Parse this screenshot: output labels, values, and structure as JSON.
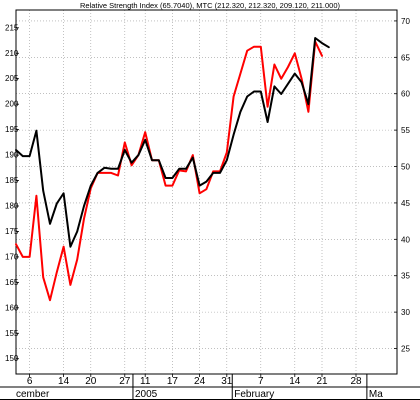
{
  "chart_data": {
    "type": "line",
    "title": "Relative Strength Index (65.7040), MTC (212.320, 212.320, 209.120, 211.000)",
    "left_axis": {
      "min": 147,
      "max": 218.5,
      "ticks": [
        150,
        155,
        160,
        165,
        170,
        175,
        180,
        185,
        190,
        195,
        200,
        205,
        210,
        215
      ]
    },
    "right_axis": {
      "min": 21.5,
      "max": 71.5,
      "ticks": [
        25,
        30,
        35,
        40,
        45,
        50,
        55,
        60,
        65,
        70
      ]
    },
    "x_ticks": [
      {
        "i": 2,
        "label": "6"
      },
      {
        "i": 7,
        "label": "14"
      },
      {
        "i": 11,
        "label": "20"
      },
      {
        "i": 16,
        "label": "27"
      },
      {
        "i": 19,
        "label": "11"
      },
      {
        "i": 23,
        "label": "17"
      },
      {
        "i": 27,
        "label": "24"
      },
      {
        "i": 31,
        "label": "31"
      },
      {
        "i": 36,
        "label": "7"
      },
      {
        "i": 41,
        "label": "14"
      },
      {
        "i": 45,
        "label": "21"
      },
      {
        "i": 50,
        "label": "28"
      }
    ],
    "month_labels": [
      {
        "i": -0.3,
        "label": "cember"
      },
      {
        "i": 17.2,
        "label": "2005"
      },
      {
        "i": 31.8,
        "label": "February"
      },
      {
        "i": 51.6,
        "label": "Ma"
      }
    ],
    "month_separators": [
      17.2,
      31.8,
      51.6
    ],
    "series": [
      {
        "color": "#000000",
        "axis": "left",
        "values": [
          191,
          189.8,
          189.8,
          194.8,
          183,
          176.5,
          180.5,
          182.5,
          172,
          175,
          180,
          184,
          186.5,
          187.5,
          187.3,
          187.3,
          191,
          188.5,
          190,
          193,
          189,
          189,
          185.5,
          185.5,
          187.3,
          187.3,
          189.5,
          184,
          184.8,
          186.5,
          186.5,
          189,
          194,
          198.5,
          201.5,
          202.5,
          202.5,
          196.5,
          203.5,
          202,
          204,
          206,
          204.3,
          200,
          213,
          212,
          211.2
        ]
      },
      {
        "color": "#ff0000",
        "axis": "left",
        "values": [
          172.5,
          170,
          170,
          182,
          166,
          161.5,
          167,
          172,
          164.5,
          169.5,
          177.5,
          183.5,
          186.5,
          186.5,
          186.5,
          186,
          192.5,
          188,
          190,
          194.5,
          189,
          189,
          184,
          184,
          187,
          186.8,
          190,
          182.5,
          183.3,
          186.8,
          186.8,
          190.5,
          201.5,
          206,
          210.5,
          211.3,
          211.3,
          199.5,
          207.8,
          205,
          207.3,
          210,
          205,
          198.5,
          212.3,
          209.5
        ]
      }
    ]
  }
}
